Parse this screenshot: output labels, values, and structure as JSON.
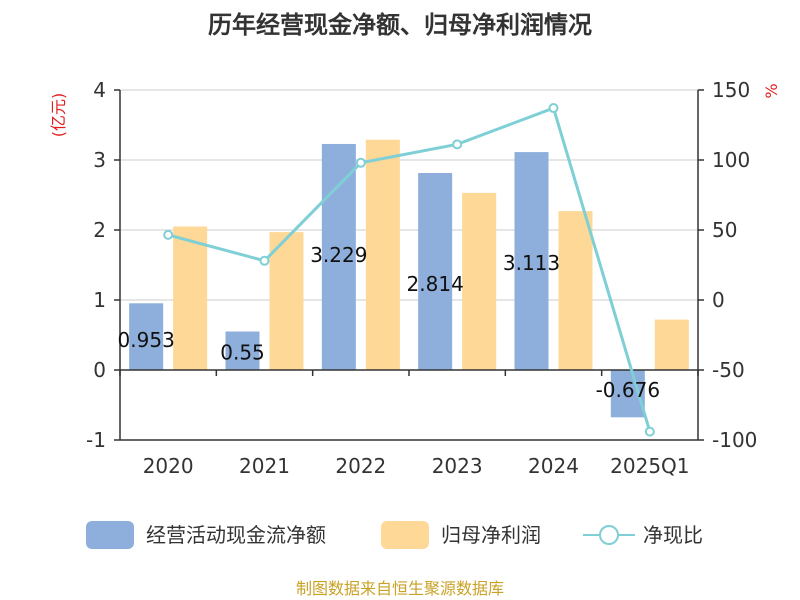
{
  "chart_data": {
    "type": "bar",
    "title": "历年经营现金净额、归母净利润情况",
    "categories": [
      "2020",
      "2021",
      "2022",
      "2023",
      "2024",
      "2025Q1"
    ],
    "series": [
      {
        "name": "经营活动现金流净额",
        "type": "bar",
        "axis": "left",
        "color": "#8eaedb",
        "values": [
          0.953,
          0.55,
          3.229,
          2.814,
          3.113,
          -0.676
        ],
        "labels": [
          "0.953",
          "0.55",
          "3.229",
          "2.814",
          "3.113",
          "-0.676"
        ]
      },
      {
        "name": "归母净利润",
        "type": "bar",
        "axis": "left",
        "color": "#fdd896",
        "values": [
          2.05,
          1.97,
          3.29,
          2.53,
          2.27,
          0.72
        ]
      },
      {
        "name": "净现比",
        "type": "line",
        "axis": "right",
        "color": "#7fcfd6",
        "values": [
          46.5,
          28.0,
          98.0,
          111.2,
          137.1,
          -94.0
        ]
      }
    ],
    "y_left": {
      "label": "(亿元)",
      "min": -1,
      "max": 4,
      "ticks": [
        4,
        3,
        2,
        1,
        0,
        -1
      ]
    },
    "y_right": {
      "label": "%",
      "min": -100,
      "max": 150,
      "ticks": [
        150,
        100,
        50,
        0,
        -50,
        -100
      ]
    },
    "legend_position": "bottom",
    "grid": true,
    "source": "制图数据来自恒生聚源数据库",
    "colors": {
      "unit_label": "#e02020",
      "source_text": "#c9a227",
      "axis": "#333333",
      "grid": "#cccccc"
    }
  }
}
